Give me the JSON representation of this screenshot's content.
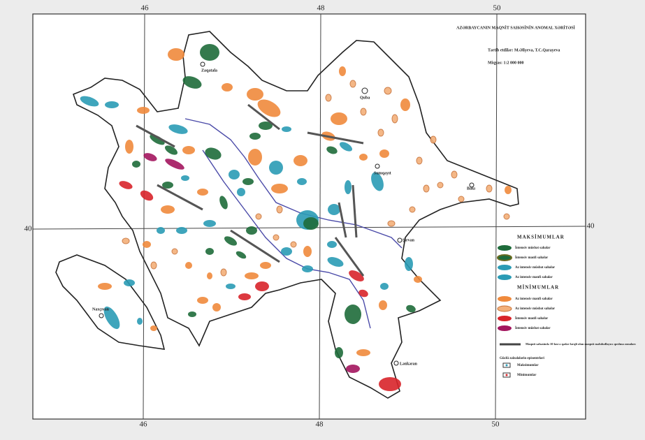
{
  "title": "AZƏRBAYCANIN MAQNİT SAHƏSİNİN ANOMAL XƏRİTƏSİ",
  "authors": "Tərtib etdilər: M.Əliyeva, T.C.Qarayeva",
  "scale": "Miqyas: 1:2 000 000",
  "meridians": [
    46,
    48,
    50
  ],
  "parallels": [
    40
  ],
  "cities": [
    "Zaqatala",
    "Quba",
    "Sumqayıt",
    "Bakı",
    "Şirvan",
    "Lənkəran",
    "Naxçıvan"
  ],
  "legend": {
    "maxima_title": "MAKSİMUMLAR",
    "maxima": [
      "İntensiv müsbət sahələr",
      "İntensiv mənfi sahələr",
      "Az intensiv müsbət sahələr",
      "Az intensiv mənfi sahələr"
    ],
    "minima_title": "MİNİMUMLAR",
    "minima": [
      "Az intensiv mənfi sahələr",
      "Az intensiv müsbət sahələr",
      "İntensiv mənfi sahələr",
      "İntensiv müsbət sahələr"
    ],
    "fault": "Maqnit sahəsində 10 km-ə qədər fərqli olan maqnit məhdudlayıcı qırılma zonaları",
    "epicenters_title": "Güclü zəlzələlərin episentrləri",
    "epicenters": [
      "Maksimumlar",
      "Minimumlar"
    ]
  }
}
